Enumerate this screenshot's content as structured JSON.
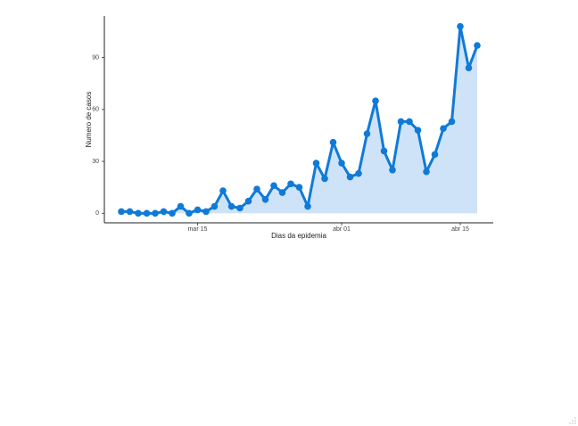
{
  "chart_data": {
    "type": "area_line",
    "xlabel": "Dias da epidemia",
    "ylabel": "Numero de casos",
    "x": [
      "mar 06",
      "mar 07",
      "mar 08",
      "mar 09",
      "mar 10",
      "mar 11",
      "mar 12",
      "mar 13",
      "mar 14",
      "mar 15",
      "mar 16",
      "mar 17",
      "mar 18",
      "mar 19",
      "mar 20",
      "mar 21",
      "mar 22",
      "mar 23",
      "mar 24",
      "mar 25",
      "mar 26",
      "mar 27",
      "mar 28",
      "mar 29",
      "mar 30",
      "mar 31",
      "abr 01",
      "abr 02",
      "abr 03",
      "abr 04",
      "abr 05",
      "abr 06",
      "abr 07",
      "abr 08",
      "abr 09",
      "abr 10",
      "abr 11",
      "abr 12",
      "abr 13",
      "abr 14",
      "abr 15",
      "abr 16",
      "abr 17"
    ],
    "values": [
      1,
      1,
      0,
      0,
      0,
      1,
      0,
      4,
      0,
      2,
      1,
      4,
      13,
      4,
      3,
      7,
      14,
      8,
      16,
      12,
      17,
      15,
      4,
      29,
      20,
      41,
      29,
      21,
      23,
      46,
      65,
      36,
      25,
      53,
      53,
      48,
      24,
      34,
      49,
      53,
      108,
      84,
      97
    ],
    "color": "#0f7ad8",
    "area_color": "#cfe3f8",
    "ylim": [
      -5.5,
      114
    ],
    "yticks": [
      0,
      30,
      60,
      90
    ],
    "xticks": [
      "mar 15",
      "abr 01",
      "abr 15"
    ]
  }
}
